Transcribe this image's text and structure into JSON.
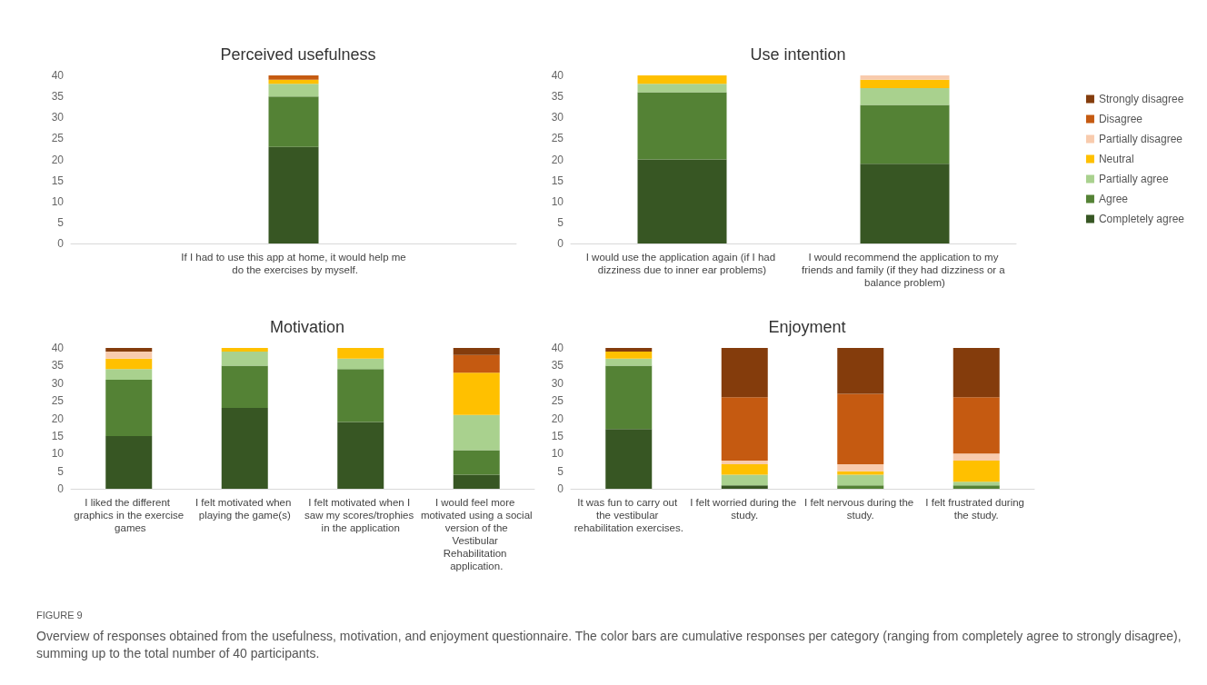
{
  "chart_data": [
    {
      "type": "bar",
      "title": "Perceived usefulness",
      "stacked": true,
      "legend": false,
      "grid": false,
      "ylim": [
        0,
        40
      ],
      "yticks": [
        0,
        5,
        10,
        15,
        20,
        25,
        30,
        35,
        40
      ],
      "categories": [
        "If I had to use this app at home, it would help me do the exercises by myself."
      ],
      "series": [
        {
          "color": "#375623",
          "values": [
            23
          ]
        },
        {
          "color": "#548235",
          "values": [
            12
          ]
        },
        {
          "color": "#a9d18e",
          "values": [
            3
          ]
        },
        {
          "color": "#ffc000",
          "values": [
            1
          ]
        },
        {
          "color": "#f8cbad",
          "values": [
            0
          ]
        },
        {
          "color": "#c55a11",
          "values": [
            1
          ]
        },
        {
          "color": "#843c0c",
          "values": [
            0
          ]
        }
      ]
    },
    {
      "type": "bar",
      "title": "Use intention",
      "stacked": true,
      "legend": "right",
      "grid": false,
      "ylim": [
        0,
        40
      ],
      "yticks": [
        0,
        5,
        10,
        15,
        20,
        25,
        30,
        35,
        40
      ],
      "categories": [
        "I would use the application again (if I had dizziness due to inner ear problems)",
        "I would recommend the application to my friends and family (if they had dizziness or a balance problem)"
      ],
      "series": [
        {
          "name": "Completely agree",
          "color": "#375623",
          "values": [
            20,
            19
          ]
        },
        {
          "name": "Agree",
          "color": "#548235",
          "values": [
            16,
            14
          ]
        },
        {
          "name": "Partially agree",
          "color": "#a9d18e",
          "values": [
            2,
            4
          ]
        },
        {
          "name": "Neutral",
          "color": "#ffc000",
          "values": [
            2,
            2
          ]
        },
        {
          "name": "Partially disagree",
          "color": "#f8cbad",
          "values": [
            0,
            1
          ]
        },
        {
          "name": "Disagree",
          "color": "#c55a11",
          "values": [
            0,
            0
          ]
        },
        {
          "name": "Strongly disagree",
          "color": "#843c0c",
          "values": [
            0,
            0
          ]
        }
      ]
    },
    {
      "type": "bar",
      "title": "Motivation",
      "stacked": true,
      "legend": false,
      "grid": false,
      "ylim": [
        0,
        40
      ],
      "yticks": [
        0,
        5,
        10,
        15,
        20,
        25,
        30,
        35,
        40
      ],
      "categories": [
        "I liked the different graphics in the exercise games",
        "I felt motivated when playing the game(s)",
        "I felt motivated when I saw my scores/trophies in the application",
        "I would feel more motivated using a social version of the Vestibular Rehabilitation application."
      ],
      "series": [
        {
          "color": "#375623",
          "values": [
            15,
            23,
            19,
            4
          ]
        },
        {
          "color": "#548235",
          "values": [
            16,
            12,
            15,
            7
          ]
        },
        {
          "color": "#a9d18e",
          "values": [
            3,
            4,
            3,
            10
          ]
        },
        {
          "color": "#ffc000",
          "values": [
            3,
            1,
            3,
            12
          ]
        },
        {
          "color": "#f8cbad",
          "values": [
            2,
            0,
            0,
            0
          ]
        },
        {
          "color": "#c55a11",
          "values": [
            0,
            0,
            0,
            5
          ]
        },
        {
          "color": "#843c0c",
          "values": [
            1,
            0,
            0,
            2
          ]
        }
      ]
    },
    {
      "type": "bar",
      "title": "Enjoyment",
      "stacked": true,
      "legend": false,
      "grid": false,
      "ylim": [
        0,
        40
      ],
      "yticks": [
        0,
        5,
        10,
        15,
        20,
        25,
        30,
        35,
        40
      ],
      "categories": [
        "It was fun to carry out the vestibular rehabilitation exercises.",
        "I felt worried during the study.",
        "I felt nervous during the study.",
        "I felt frustrated during the study."
      ],
      "series": [
        {
          "color": "#375623",
          "values": [
            17,
            1,
            0,
            0
          ]
        },
        {
          "color": "#548235",
          "values": [
            18,
            0,
            1,
            1
          ]
        },
        {
          "color": "#a9d18e",
          "values": [
            2,
            3,
            3,
            1
          ]
        },
        {
          "color": "#ffc000",
          "values": [
            2,
            3,
            1,
            6
          ]
        },
        {
          "color": "#f8cbad",
          "values": [
            0,
            1,
            2,
            2
          ]
        },
        {
          "color": "#c55a11",
          "values": [
            0,
            18,
            20,
            16
          ]
        },
        {
          "color": "#843c0c",
          "values": [
            1,
            14,
            13,
            14
          ]
        }
      ],
      "annotations": [
        "FIGURE 9",
        "Overview of responses obtained from the usefulness, motivation, and enjoyment questionnaire. The color bars are cumulative responses per category (ranging from completely agree to strongly disagree), summing up to the total number of 40 participants."
      ]
    }
  ]
}
